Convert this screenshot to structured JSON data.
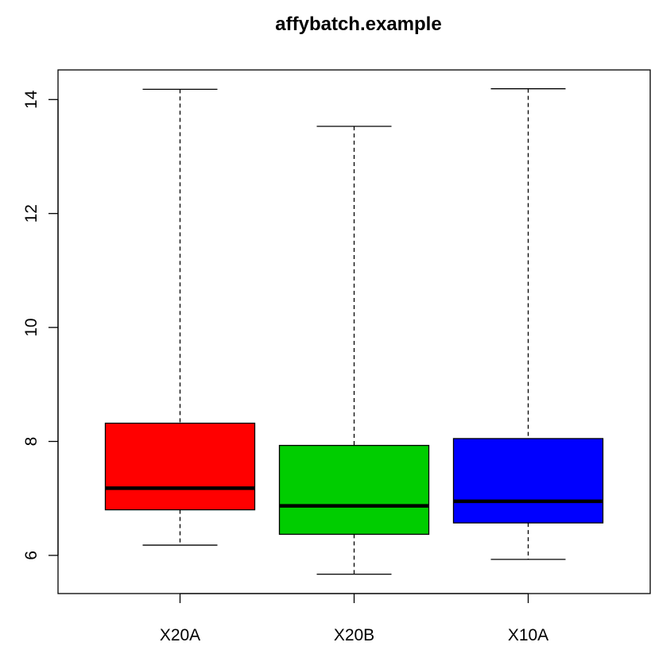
{
  "chart_data": {
    "type": "boxplot",
    "title": "affybatch.example",
    "xlabel": "",
    "ylabel": "",
    "categories": [
      "X20A",
      "X20B",
      "X10A"
    ],
    "series": [
      {
        "name": "X20A",
        "min": 6.18,
        "q1": 6.8,
        "median": 7.18,
        "q3": 8.32,
        "max": 14.18,
        "color": "#ff0000"
      },
      {
        "name": "X20B",
        "min": 5.67,
        "q1": 6.37,
        "median": 6.87,
        "q3": 7.93,
        "max": 13.53,
        "color": "#00cd00"
      },
      {
        "name": "X10A",
        "min": 5.93,
        "q1": 6.57,
        "median": 6.95,
        "q3": 8.05,
        "max": 14.19,
        "color": "#0000ff"
      }
    ],
    "ylim": [
      5.33,
      14.52
    ],
    "yticks": [
      6,
      8,
      10,
      12,
      14
    ],
    "grid": false
  }
}
